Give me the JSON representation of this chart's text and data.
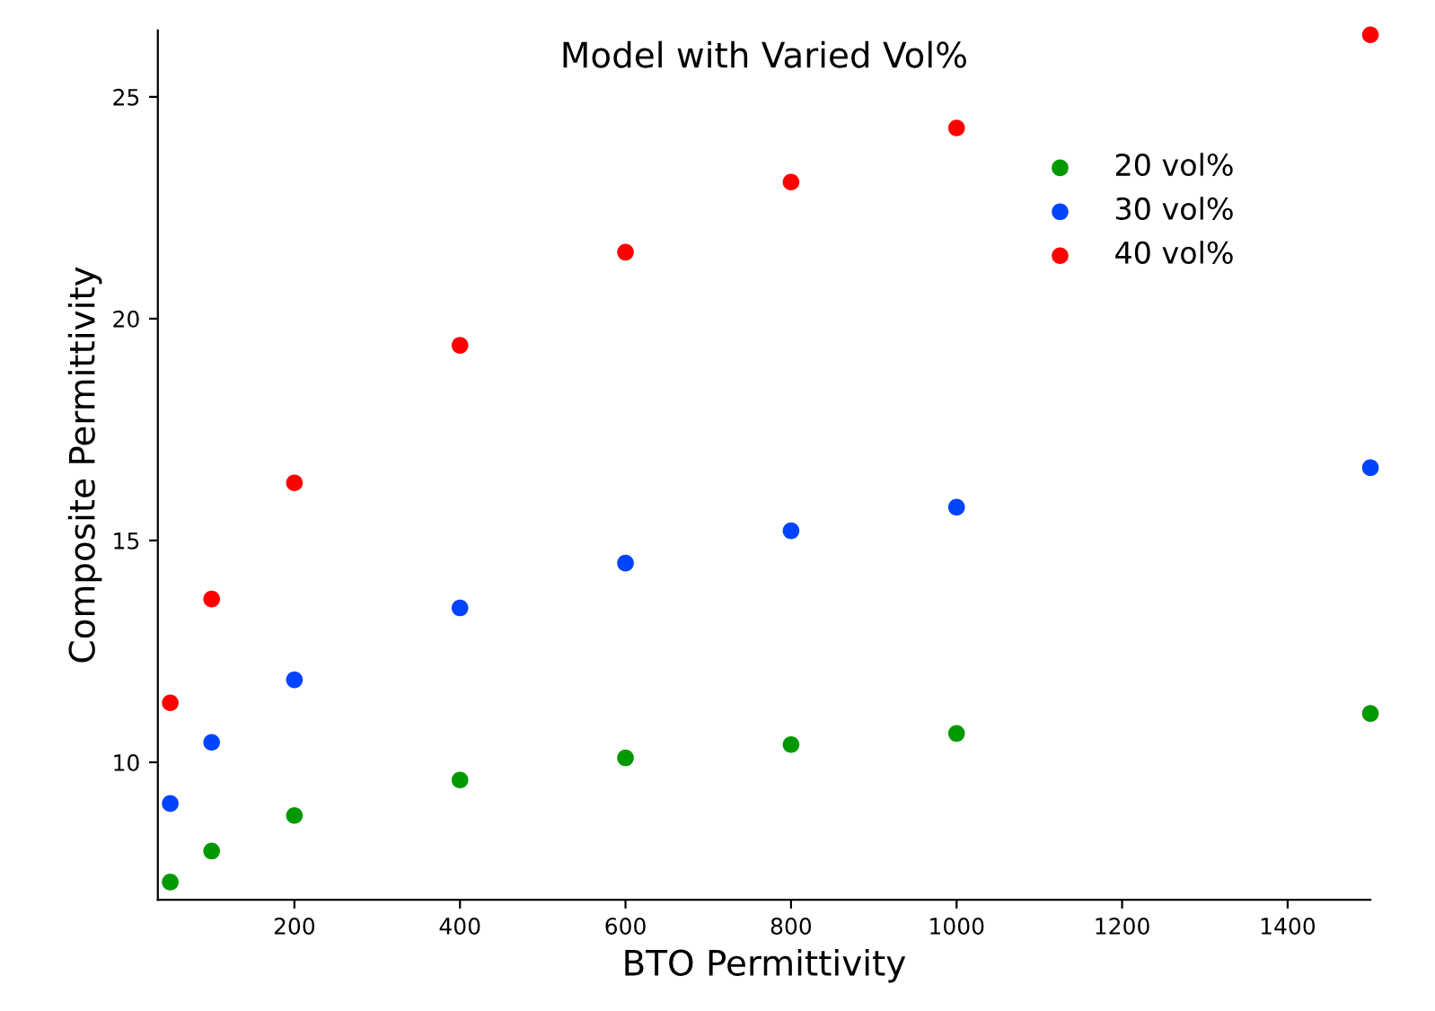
{
  "chart_data": {
    "type": "scatter",
    "title": "Model with Varied Vol%",
    "xlabel": "BTO Permittivity",
    "ylabel": "Composite Permittivity",
    "x": [
      50,
      100,
      200,
      400,
      600,
      800,
      1000,
      1500
    ],
    "series": [
      {
        "name": "20 vol%",
        "color": "#009900",
        "values": [
          7.3,
          8.0,
          8.8,
          9.6,
          10.1,
          10.4,
          10.65,
          11.1
        ]
      },
      {
        "name": "30 vol%",
        "color": "#0044ff",
        "values": [
          9.07,
          10.45,
          11.86,
          13.48,
          14.49,
          15.22,
          15.75,
          16.64
        ]
      },
      {
        "name": "40 vol%",
        "color": "#ff0000",
        "values": [
          11.34,
          13.68,
          16.3,
          19.4,
          21.5,
          23.08,
          24.3,
          26.4
        ]
      }
    ],
    "xlim": [
      35,
      1500
    ],
    "ylim": [
      6.9,
      26.5
    ],
    "xticks": [
      200,
      400,
      600,
      800,
      1000,
      1200,
      1400
    ],
    "yticks": [
      10,
      15,
      20,
      25
    ],
    "grid": false,
    "legend": "top right",
    "marker": "circle"
  }
}
